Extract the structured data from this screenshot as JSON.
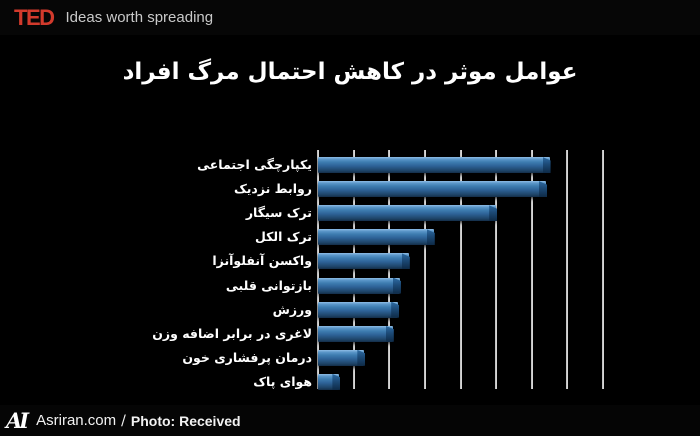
{
  "header": {
    "logo": "TED",
    "tagline": "Ideas worth spreading"
  },
  "slide": {
    "title": "عوامل موثر در کاهش احتمال مرگ افراد"
  },
  "chart_data": {
    "type": "bar",
    "orientation": "horizontal",
    "title": "عوامل موثر در کاهش احتمال مرگ افراد",
    "categories": [
      "یکپارچگی اجتماعی",
      "روابط نزدیک",
      "ترک سیگار",
      "ترک الکل",
      "واکسن آنفلوآنزا",
      "بازتوانی قلبی",
      "ورزش",
      "لاغری در برابر اضافه وزن",
      "درمان پرفشاری خون",
      "هوای پاک"
    ],
    "values": [
      6.5,
      6.4,
      5.0,
      3.25,
      2.55,
      2.3,
      2.25,
      2.1,
      1.3,
      0.6
    ],
    "xlim": [
      0,
      8
    ],
    "gridline_interval": 1,
    "grid": "vertical-gridlines-only",
    "axis_tick_labels_shown": false,
    "value_labels_shown": false,
    "bar_color": "#3e7cb0",
    "gridline_color": "#e0e0e0",
    "background_color": "#000000",
    "legend": "none"
  },
  "footer": {
    "logo": "AI",
    "site": "Asriran.com",
    "separator": "/",
    "credit": "Photo: Received"
  },
  "colors": {
    "ted_red": "#d23a2c",
    "tagline_gray": "#c9c9c9",
    "title_white": "#ffffff"
  }
}
